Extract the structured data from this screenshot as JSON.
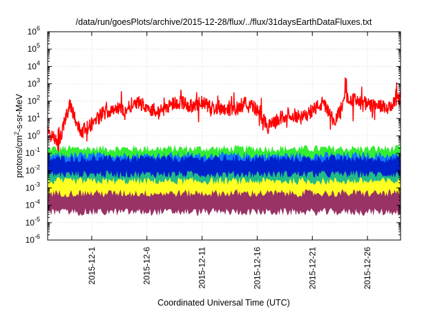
{
  "chart_data": {
    "type": "line",
    "title": "/data/run/goesPlots/archive/2015-12-28/flux/../flux/31daysEarthDataFluxes.txt",
    "xlabel": "Coordinated Universal Time (UTC)",
    "ylabel": "protons/cm²-s-sr-MeV",
    "ylabel_base": "protons/cm",
    "ylabel_sup": "2",
    "ylabel_rest": "-s-sr-MeV",
    "y_scale": "log",
    "ylim": [
      1e-06,
      1000000.0
    ],
    "y_tick_exponents": [
      -6,
      -5,
      -4,
      -3,
      -2,
      -1,
      0,
      1,
      2,
      3,
      4,
      5,
      6
    ],
    "y_tick_base": "10",
    "xlim": [
      "2015-11-27",
      "2015-12-29"
    ],
    "x_ticks": [
      "2015-12-1",
      "2015-12-6",
      "2015-12-11",
      "2015-12-16",
      "2015-12-21",
      "2015-12-26"
    ],
    "grid": true,
    "series": [
      {
        "color": "#ff0000",
        "shape": "line",
        "x": [
          "2015-11-27",
          "2015-11-28",
          "2015-11-29",
          "2015-11-30",
          "2015-12-01",
          "2015-12-02",
          "2015-12-03",
          "2015-12-04",
          "2015-12-05",
          "2015-12-06",
          "2015-12-07",
          "2015-12-08",
          "2015-12-09",
          "2015-12-10",
          "2015-12-11",
          "2015-12-12",
          "2015-12-13",
          "2015-12-14",
          "2015-12-15",
          "2015-12-16",
          "2015-12-17",
          "2015-12-18",
          "2015-12-19",
          "2015-12-20",
          "2015-12-21",
          "2015-12-22",
          "2015-12-23",
          "2015-12-24",
          "2015-12-25",
          "2015-12-26",
          "2015-12-27",
          "2015-12-28",
          "2015-12-29"
        ],
        "y": [
          2,
          0.3,
          80,
          1.5,
          5,
          20,
          40,
          30,
          100,
          50,
          20,
          60,
          100,
          50,
          80,
          40,
          40,
          30,
          100,
          30,
          3,
          10,
          20,
          10,
          30,
          80,
          5,
          200,
          100,
          60,
          50,
          40,
          150
        ]
      },
      {
        "color": "#33ee33",
        "shape": "band",
        "range": [
          0.003,
          0.15
        ]
      },
      {
        "color": "#1177ff",
        "shape": "band",
        "range": [
          0.002,
          0.06
        ]
      },
      {
        "color": "#0022cc",
        "shape": "band",
        "range": [
          0.0025,
          0.04
        ]
      },
      {
        "color": "#22bb88",
        "shape": "band",
        "range": [
          0.0008,
          0.005
        ]
      },
      {
        "color": "#ffff22",
        "shape": "band",
        "range": [
          0.00015,
          0.002
        ]
      },
      {
        "color": "#993366",
        "shape": "band",
        "range": [
          5e-05,
          0.0004
        ]
      }
    ]
  }
}
